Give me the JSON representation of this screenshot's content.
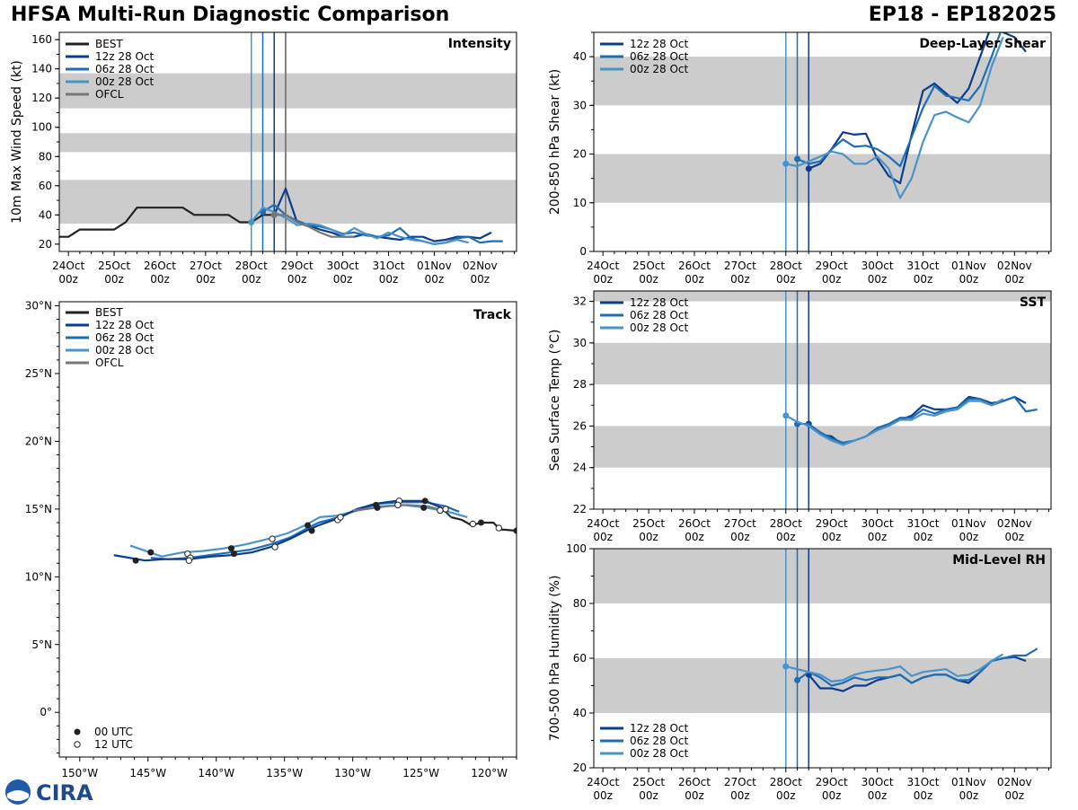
{
  "title_left": "HFSA Multi-Run Diagnostic Comparison",
  "title_right": "EP18 - EP182025",
  "logo_text": "CIRA",
  "colors": {
    "best": "#222222",
    "run12": "#0b3d8c",
    "run06": "#1f6db5",
    "run00": "#4a93c9",
    "ofcl": "#777777",
    "band": "#cccccc"
  },
  "time_ticks": [
    "24Oct",
    "25Oct",
    "26Oct",
    "27Oct",
    "28Oct",
    "29Oct",
    "30Oct",
    "31Oct",
    "01Nov",
    "02Nov"
  ],
  "time_tick_sub": "00z",
  "chart_data": [
    {
      "id": "intensity",
      "type": "line",
      "title": "Intensity",
      "ylabel": "10m Max Wind Speed (kt)",
      "ylim": [
        15,
        165
      ],
      "yticks": [
        20,
        40,
        60,
        80,
        100,
        120,
        140,
        160
      ],
      "xlim_days": [
        -0.2,
        9.8
      ],
      "bands": [
        [
          34,
          64
        ],
        [
          83,
          96
        ],
        [
          113,
          137
        ]
      ],
      "init_lines_days": [
        4.0,
        4.25,
        4.5
      ],
      "extra_vline_days": 4.75,
      "legend": [
        "BEST",
        "12z 28 Oct",
        "06z 28 Oct",
        "00z 28 Oct",
        "OFCL"
      ],
      "series": [
        {
          "name": "BEST",
          "color_key": "best",
          "x": [
            -0.25,
            0,
            0.25,
            0.5,
            0.75,
            1,
            1.25,
            1.5,
            1.75,
            2,
            2.25,
            2.5,
            2.75,
            3,
            3.25,
            3.5,
            3.75,
            4,
            4.25,
            4.5
          ],
          "y": [
            25,
            25,
            30,
            30,
            30,
            30,
            35,
            45,
            45,
            45,
            45,
            45,
            40,
            40,
            40,
            40,
            35,
            35,
            40,
            40
          ]
        },
        {
          "name": "12z 28 Oct",
          "color_key": "run12",
          "x": [
            4.5,
            4.75,
            5,
            5.25,
            5.5,
            5.75,
            6,
            6.25,
            6.5,
            6.75,
            7,
            7.25,
            7.5,
            7.75,
            8,
            8.25,
            8.5,
            8.75,
            9,
            9.25
          ],
          "y": [
            40,
            58,
            35,
            33,
            30,
            28,
            25,
            25,
            27,
            25,
            24,
            23,
            25,
            25,
            22,
            23,
            25,
            25,
            24,
            28
          ]
        },
        {
          "name": "06z 28 Oct",
          "color_key": "run06",
          "x": [
            4.25,
            4.5,
            4.75,
            5,
            5.25,
            5.5,
            5.75,
            6,
            6.25,
            6.5,
            6.75,
            7,
            7.25,
            7.5,
            7.75,
            8,
            8.25,
            8.5,
            8.75,
            9,
            9.25,
            9.5
          ],
          "y": [
            42,
            47,
            40,
            36,
            33,
            32,
            30,
            27,
            28,
            26,
            25,
            26,
            31,
            24,
            22,
            20,
            21,
            24,
            25,
            21,
            22,
            22
          ]
        },
        {
          "name": "00z 28 Oct",
          "color_key": "run00",
          "x": [
            4,
            4.25,
            4.5,
            4.75,
            5,
            5.25,
            5.5,
            5.75,
            6,
            6.25,
            6.5,
            6.75,
            7,
            7.25,
            7.5,
            7.75,
            8,
            8.25,
            8.5,
            8.75
          ],
          "y": [
            35,
            45,
            42,
            38,
            33,
            34,
            33,
            30,
            26,
            31,
            27,
            24,
            28,
            25,
            23,
            22,
            20,
            21,
            23,
            21
          ]
        },
        {
          "name": "OFCL",
          "color_key": "ofcl",
          "x": [
            4.5,
            4.75,
            5,
            5.25,
            5.5,
            5.75,
            6,
            6.25
          ],
          "y": [
            40,
            40,
            35,
            32,
            28,
            25,
            25,
            25
          ]
        }
      ]
    },
    {
      "id": "shear",
      "type": "line",
      "title": "Deep-Layer Shear",
      "ylabel": "200-850 hPa Shear (kt)",
      "ylim": [
        0,
        45
      ],
      "yticks": [
        0,
        10,
        20,
        30,
        40
      ],
      "xlim_days": [
        -0.2,
        9.8
      ],
      "bands": [
        [
          10,
          20
        ],
        [
          30,
          40
        ]
      ],
      "init_lines_days": [
        4.0,
        4.25,
        4.5
      ],
      "legend": [
        "12z 28 Oct",
        "06z 28 Oct",
        "00z 28 Oct"
      ],
      "series": [
        {
          "name": "12z 28 Oct",
          "color_key": "run12",
          "x": [
            4.5,
            4.75,
            5,
            5.25,
            5.5,
            5.75,
            6,
            6.25,
            6.5,
            6.75,
            7,
            7.25,
            7.5,
            7.75,
            8,
            8.25,
            8.5,
            8.75,
            9,
            9.25
          ],
          "y": [
            17,
            18,
            21,
            24.5,
            24,
            24.2,
            19,
            15.5,
            14,
            24,
            33,
            34.5,
            32.5,
            30.5,
            33.5,
            40,
            46.5,
            45,
            44,
            41
          ]
        },
        {
          "name": "06z 28 Oct",
          "color_key": "run06",
          "x": [
            4.25,
            4.5,
            4.75,
            5,
            5.25,
            5.5,
            5.75,
            6,
            6.25,
            6.5,
            6.75,
            7,
            7.25,
            7.5,
            7.75,
            8,
            8.25,
            8.5,
            8.75,
            9
          ],
          "y": [
            19,
            18,
            18.5,
            21,
            23,
            21.5,
            21.7,
            21,
            19.5,
            17.5,
            23.5,
            29.5,
            34,
            32,
            31.5,
            31,
            34,
            40,
            46.5,
            45
          ]
        },
        {
          "name": "00z 28 Oct",
          "color_key": "run00",
          "x": [
            4,
            4.25,
            4.5,
            4.75,
            5,
            5.25,
            5.5,
            5.75,
            6,
            6.25,
            6.5,
            6.75,
            7,
            7.25,
            7.5,
            7.75,
            8,
            8.25,
            8.5,
            8.75
          ],
          "y": [
            18,
            17.5,
            18.5,
            19.5,
            20.5,
            20,
            18,
            18,
            19.5,
            17,
            11,
            15,
            22.5,
            28,
            28.7,
            27.5,
            26.5,
            30,
            38,
            44
          ]
        }
      ]
    },
    {
      "id": "track",
      "type": "scatter",
      "title": "Track",
      "xlim": [
        -151.5,
        -118
      ],
      "ylim": [
        -3.3,
        30.3
      ],
      "xticks": [
        -150,
        -145,
        -140,
        -135,
        -130,
        -125,
        -120
      ],
      "xtick_labels": [
        "150°W",
        "145°W",
        "140°W",
        "135°W",
        "130°W",
        "125°W",
        "120°W"
      ],
      "yticks": [
        0,
        5,
        10,
        15,
        20,
        25,
        30
      ],
      "ytick_labels": [
        "0°",
        "5°N",
        "10°N",
        "15°N",
        "20°N",
        "25°N",
        "30°N"
      ],
      "legend": [
        "BEST",
        "12z 28 Oct",
        "06z 28 Oct",
        "00z 28 Oct",
        "OFCL"
      ],
      "marker_legend": [
        "00 UTC",
        "12 UTC"
      ],
      "series": [
        {
          "name": "BEST",
          "color_key": "best",
          "lon": [
            -118,
            -119.2,
            -119.7,
            -120.6,
            -121.3,
            -122.0,
            -122.8
          ],
          "lat": [
            13.4,
            13.5,
            14.0,
            14.0,
            13.8,
            14.2,
            14.4
          ]
        },
        {
          "name": "12z 28 Oct",
          "color_key": "run12",
          "lon": [
            -122.8,
            -123.5,
            -124.7,
            -126.8,
            -128.3,
            -129.7,
            -131.1,
            -132.5,
            -133.4,
            -134.6,
            -136.0,
            -137.4,
            -138.9,
            -140.3,
            -142.0,
            -143.8,
            -145.2,
            -147.5
          ],
          "lat": [
            14.4,
            15.1,
            15.6,
            15.6,
            15.4,
            15.0,
            14.3,
            13.8,
            13.4,
            12.8,
            12.2,
            11.8,
            11.6,
            11.5,
            11.3,
            11.3,
            11.2,
            11.6
          ]
        },
        {
          "name": "06z 28 Oct",
          "color_key": "run06",
          "lon": [
            -122.2,
            -123.2,
            -124.6,
            -126.5,
            -128.0,
            -129.6,
            -131.0,
            -132.5,
            -133.3,
            -134.6,
            -136.0,
            -137.5,
            -139.0,
            -140.5,
            -142.0,
            -143.5,
            -144.8
          ],
          "lat": [
            14.8,
            15.2,
            15.5,
            15.5,
            15.4,
            15.0,
            14.4,
            14.0,
            13.6,
            12.9,
            12.4,
            12.0,
            11.8,
            11.6,
            11.4,
            11.3,
            11.4
          ]
        },
        {
          "name": "00z 28 Oct",
          "color_key": "run00",
          "lon": [
            -121.6,
            -123.0,
            -124.6,
            -126.3,
            -128.0,
            -129.6,
            -131.2,
            -132.4,
            -133.5,
            -134.8,
            -136.2,
            -137.8,
            -139.4,
            -141.0,
            -142.5,
            -144.0,
            -146.3
          ],
          "lat": [
            14.4,
            14.8,
            15.1,
            15.3,
            15.2,
            14.9,
            14.5,
            14.4,
            13.8,
            13.2,
            12.8,
            12.4,
            12.1,
            11.9,
            11.8,
            11.5,
            12.3
          ]
        },
        {
          "name": "OFCL",
          "color_key": "ofcl",
          "lon": [
            -123.0,
            -124.5,
            -126.0,
            -127.5,
            -129.0,
            -130.0
          ],
          "lat": [
            14.8,
            15.2,
            15.3,
            15.2,
            15.0,
            14.9
          ]
        }
      ],
      "markers_00utc": [
        [
          -118.0,
          13.4
        ],
        [
          -120.6,
          14.0
        ],
        [
          -124.7,
          15.6
        ],
        [
          -124.8,
          15.1
        ],
        [
          -128.3,
          15.3
        ],
        [
          -128.2,
          15.1
        ],
        [
          -133.3,
          13.8
        ],
        [
          -133.0,
          13.4
        ],
        [
          -138.9,
          12.1
        ],
        [
          -138.7,
          11.7
        ],
        [
          -144.8,
          11.8
        ],
        [
          -145.9,
          11.2
        ]
      ],
      "markers_12utc": [
        [
          -119.3,
          13.6
        ],
        [
          -121.2,
          13.9
        ],
        [
          -123.2,
          15.0
        ],
        [
          -123.6,
          14.9
        ],
        [
          -126.6,
          15.6
        ],
        [
          -126.7,
          15.3
        ],
        [
          -131.1,
          14.2
        ],
        [
          -130.9,
          14.4
        ],
        [
          -135.9,
          12.8
        ],
        [
          -135.7,
          12.2
        ],
        [
          -142.1,
          11.7
        ],
        [
          -141.9,
          11.4
        ],
        [
          -142.0,
          11.2
        ]
      ]
    },
    {
      "id": "sst",
      "type": "line",
      "title": "SST",
      "ylabel": "Sea Surface Temp (°C)",
      "ylim": [
        22,
        32.5
      ],
      "yticks": [
        22,
        24,
        26,
        28,
        30,
        32
      ],
      "xlim_days": [
        -0.2,
        9.8
      ],
      "bands": [
        [
          24,
          26
        ],
        [
          28,
          30
        ],
        [
          32,
          33
        ]
      ],
      "init_lines_days": [
        4.0,
        4.25,
        4.5
      ],
      "legend": [
        "12z 28 Oct",
        "06z 28 Oct",
        "00z 28 Oct"
      ],
      "series": [
        {
          "name": "12z 28 Oct",
          "color_key": "run12",
          "x": [
            4.5,
            4.75,
            5,
            5.25,
            5.5,
            5.75,
            6,
            6.25,
            6.5,
            6.75,
            7,
            7.25,
            7.5,
            7.75,
            8,
            8.25,
            8.5,
            8.75,
            9,
            9.25
          ],
          "y": [
            26.1,
            25.6,
            25.5,
            25.1,
            25.3,
            25.5,
            25.9,
            26.1,
            26.3,
            26.5,
            27.0,
            26.8,
            26.8,
            26.9,
            27.4,
            27.3,
            27.1,
            27.2,
            27.4,
            27.1
          ]
        },
        {
          "name": "06z 28 Oct",
          "color_key": "run06",
          "x": [
            4.25,
            4.5,
            4.75,
            5,
            5.25,
            5.5,
            5.75,
            6,
            6.25,
            6.5,
            6.75,
            7,
            7.25,
            7.5,
            7.75,
            8,
            8.25,
            8.5,
            8.75,
            9,
            9.25,
            9.5
          ],
          "y": [
            26.1,
            26.1,
            25.7,
            25.4,
            25.2,
            25.3,
            25.5,
            25.9,
            26.1,
            26.4,
            26.4,
            26.8,
            26.6,
            26.8,
            26.9,
            27.3,
            27.3,
            27.0,
            27.2,
            27.4,
            26.7,
            26.8
          ]
        },
        {
          "name": "00z 28 Oct",
          "color_key": "run00",
          "x": [
            4,
            4.25,
            4.5,
            4.75,
            5,
            5.25,
            5.5,
            5.75,
            6,
            6.25,
            6.5,
            6.75,
            7,
            7.25,
            7.5,
            7.75,
            8,
            8.25,
            8.5,
            8.75
          ],
          "y": [
            26.5,
            26.2,
            26.0,
            25.6,
            25.3,
            25.1,
            25.3,
            25.5,
            25.8,
            26.0,
            26.3,
            26.3,
            26.6,
            26.5,
            26.7,
            26.8,
            27.2,
            27.2,
            27.0,
            27.3
          ]
        }
      ]
    },
    {
      "id": "rh",
      "type": "line",
      "title": "Mid-Level RH",
      "ylabel": "700-500 hPa Humidity (%)",
      "ylim": [
        20,
        100
      ],
      "yticks": [
        20,
        40,
        60,
        80,
        100
      ],
      "xlim_days": [
        -0.2,
        9.8
      ],
      "bands": [
        [
          40,
          60
        ],
        [
          80,
          100
        ]
      ],
      "init_lines_days": [
        4.0,
        4.25,
        4.5
      ],
      "legend": [
        "12z 28 Oct",
        "06z 28 Oct",
        "00z 28 Oct"
      ],
      "series": [
        {
          "name": "12z 28 Oct",
          "color_key": "run12",
          "x": [
            4.5,
            4.75,
            5,
            5.25,
            5.5,
            5.75,
            6,
            6.25,
            6.5,
            6.75,
            7,
            7.25,
            7.5,
            7.75,
            8,
            8.25,
            8.5,
            8.75,
            9,
            9.25
          ],
          "y": [
            54,
            49,
            49,
            48,
            50,
            50,
            52,
            53,
            54,
            51,
            53,
            54,
            54,
            52,
            51,
            55,
            59,
            60,
            60.5,
            59
          ]
        },
        {
          "name": "06z 28 Oct",
          "color_key": "run06",
          "x": [
            4.25,
            4.5,
            4.75,
            5,
            5.25,
            5.5,
            5.75,
            6,
            6.25,
            6.5,
            6.75,
            7,
            7.25,
            7.5,
            7.75,
            8,
            8.25,
            8.5,
            8.75,
            9,
            9.25,
            9.5
          ],
          "y": [
            52,
            55,
            53,
            50,
            51,
            53,
            52,
            53,
            53,
            54,
            51,
            53,
            54,
            54,
            52,
            52,
            55,
            59,
            60,
            61,
            61,
            63.5
          ]
        },
        {
          "name": "00z 28 Oct",
          "color_key": "run00",
          "x": [
            4,
            4.25,
            4.5,
            4.75,
            5,
            5.25,
            5.5,
            5.75,
            6,
            6.25,
            6.5,
            6.75,
            7,
            7.25,
            7.5,
            7.75,
            8,
            8.25,
            8.5,
            8.75
          ],
          "y": [
            57,
            56,
            55,
            54,
            51.5,
            52,
            54,
            55,
            55.5,
            56,
            57,
            53.5,
            55,
            55.5,
            56,
            53.5,
            54,
            56,
            59,
            61.5
          ]
        }
      ]
    }
  ]
}
